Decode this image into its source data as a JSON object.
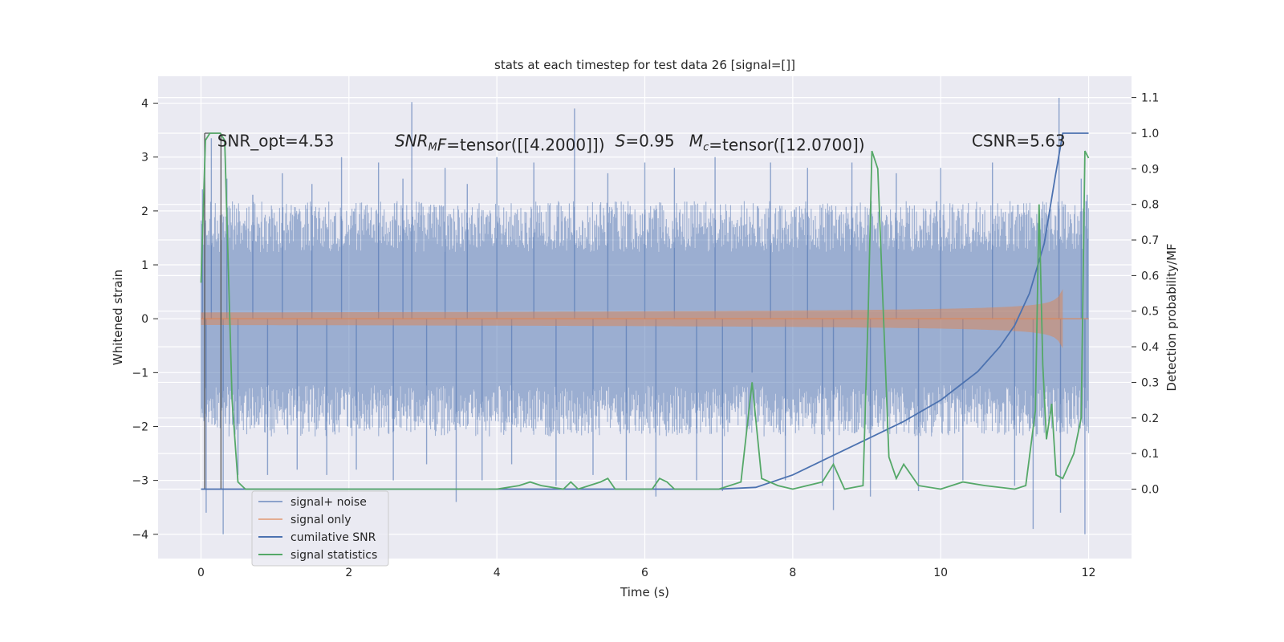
{
  "chart_data": {
    "type": "line",
    "title": "stats at each timestep for test data 26 [signal=[]]",
    "xlabel": "Time (s)",
    "ylabel": "Whitened strain",
    "y2label": "Detection probability/MF",
    "xlim": [
      -0.58,
      12.58
    ],
    "ylim": [
      -4.45,
      4.5
    ],
    "y2lim": [
      -0.195,
      1.16
    ],
    "x_ticks": [
      0,
      2,
      4,
      6,
      8,
      10,
      12
    ],
    "y_ticks": [
      -4,
      -3,
      -2,
      -1,
      0,
      1,
      2,
      3,
      4
    ],
    "y2_ticks": [
      0.0,
      0.1,
      0.2,
      0.3,
      0.4,
      0.5,
      0.6,
      0.7,
      0.8,
      0.9,
      1.0,
      1.1
    ],
    "x_tick_labels": [
      "0",
      "2",
      "4",
      "6",
      "8",
      "10",
      "12"
    ],
    "y_tick_labels": [
      "−4",
      "−3",
      "−2",
      "−1",
      "0",
      "1",
      "2",
      "3",
      "4"
    ],
    "y2_tick_labels": [
      "0.0",
      "0.1",
      "0.2",
      "0.3",
      "0.4",
      "0.5",
      "0.6",
      "0.7",
      "0.8",
      "0.9",
      "1.0",
      "1.1"
    ],
    "grid": true,
    "legend_position": "lower-left",
    "annotations": [
      {
        "key": "snr_opt",
        "text": "SNR_opt=4.53",
        "x": 0.22,
        "y": 3.3
      },
      {
        "key": "snr_mf",
        "text": "=tensor([[4.2000]])",
        "base": "SNR",
        "sub": "M",
        "tail": "F",
        "x": 2.62,
        "y": 3.3
      },
      {
        "key": "s",
        "text": "=0.95",
        "base": "S",
        "x": 5.6,
        "y": 3.3
      },
      {
        "key": "mc",
        "text": "=tensor([12.0700])",
        "base": "M",
        "sub": "c",
        "x": 6.6,
        "y": 3.3
      },
      {
        "key": "csnr",
        "text": "CSNR=5.63",
        "x": 10.42,
        "y": 3.3
      }
    ],
    "vertical_lines": [
      0.05,
      0.27
    ],
    "series": [
      {
        "name": "signal+ noise",
        "color": "#4c72b0",
        "opacity": 0.5,
        "envelope": {
          "t_start": 0.0,
          "t_end": 12.0,
          "typical_range": [
            -1.9,
            1.9
          ],
          "extremes": [
            -4.0,
            4.05
          ]
        },
        "spikes": [
          [
            0.02,
            2.4
          ],
          [
            0.07,
            -3.6
          ],
          [
            0.14,
            3.35
          ],
          [
            0.3,
            -4.0
          ],
          [
            0.35,
            2.6
          ],
          [
            0.5,
            -2.9
          ],
          [
            0.7,
            2.3
          ],
          [
            0.9,
            -2.9
          ],
          [
            1.1,
            2.7
          ],
          [
            1.3,
            -2.8
          ],
          [
            1.5,
            2.5
          ],
          [
            1.7,
            -2.9
          ],
          [
            1.9,
            3.0
          ],
          [
            2.1,
            -2.8
          ],
          [
            2.4,
            2.9
          ],
          [
            2.6,
            -3.0
          ],
          [
            2.73,
            2.6
          ],
          [
            2.85,
            4.02
          ],
          [
            3.05,
            -2.7
          ],
          [
            3.3,
            2.8
          ],
          [
            3.45,
            -3.4
          ],
          [
            3.6,
            2.5
          ],
          [
            3.8,
            -3.0
          ],
          [
            4.0,
            3.0
          ],
          [
            4.2,
            -2.7
          ],
          [
            4.5,
            2.9
          ],
          [
            4.8,
            -3.1
          ],
          [
            5.05,
            3.9
          ],
          [
            5.3,
            -2.9
          ],
          [
            5.5,
            2.7
          ],
          [
            5.75,
            -3.0
          ],
          [
            6.0,
            2.9
          ],
          [
            6.15,
            -3.3
          ],
          [
            6.4,
            2.8
          ],
          [
            6.7,
            -3.0
          ],
          [
            6.95,
            3.0
          ],
          [
            7.05,
            -3.2
          ],
          [
            7.45,
            -1.0
          ],
          [
            7.7,
            2.9
          ],
          [
            7.9,
            -3.0
          ],
          [
            8.2,
            2.8
          ],
          [
            8.4,
            -3.1
          ],
          [
            8.55,
            -3.55
          ],
          [
            8.8,
            2.9
          ],
          [
            9.05,
            -3.3
          ],
          [
            9.4,
            2.7
          ],
          [
            9.7,
            -3.2
          ],
          [
            10.0,
            2.8
          ],
          [
            10.3,
            -3.0
          ],
          [
            10.7,
            2.9
          ],
          [
            11.0,
            -3.1
          ],
          [
            11.25,
            -3.9
          ],
          [
            11.6,
            4.1
          ],
          [
            11.62,
            -3.6
          ],
          [
            11.9,
            2.6
          ],
          [
            11.95,
            -4.0
          ],
          [
            11.98,
            2.3
          ]
        ]
      },
      {
        "name": "signal only",
        "color": "#dd8452",
        "opacity": 0.5,
        "chirp": {
          "t_start": 0.0,
          "t_merger": 11.65,
          "peak_amplitude": 0.55,
          "min_amplitude": -0.85,
          "t_end": 12.0
        }
      },
      {
        "name": "cumilative SNR",
        "color": "#4c72b0",
        "axis": "right",
        "points": [
          [
            0.0,
            0.0
          ],
          [
            7.0,
            0.0
          ],
          [
            7.5,
            0.005
          ],
          [
            8.0,
            0.04
          ],
          [
            8.5,
            0.09
          ],
          [
            9.0,
            0.14
          ],
          [
            9.5,
            0.19
          ],
          [
            10.0,
            0.25
          ],
          [
            10.5,
            0.33
          ],
          [
            10.8,
            0.4
          ],
          [
            11.0,
            0.46
          ],
          [
            11.2,
            0.55
          ],
          [
            11.4,
            0.69
          ],
          [
            11.55,
            0.88
          ],
          [
            11.65,
            1.0
          ],
          [
            12.0,
            1.0
          ]
        ]
      },
      {
        "name": "signal statistics",
        "color": "#55a868",
        "axis": "right",
        "points": [
          [
            0.0,
            0.58
          ],
          [
            0.06,
            0.98
          ],
          [
            0.12,
            1.0
          ],
          [
            0.2,
            1.0
          ],
          [
            0.26,
            1.0
          ],
          [
            0.32,
            0.98
          ],
          [
            0.42,
            0.25
          ],
          [
            0.5,
            0.02
          ],
          [
            0.6,
            0.0
          ],
          [
            1.0,
            0.0
          ],
          [
            2.0,
            0.0
          ],
          [
            3.0,
            0.0
          ],
          [
            4.0,
            0.0
          ],
          [
            4.3,
            0.01
          ],
          [
            4.45,
            0.02
          ],
          [
            4.6,
            0.01
          ],
          [
            4.9,
            0.0
          ],
          [
            5.0,
            0.02
          ],
          [
            5.1,
            0.0
          ],
          [
            5.4,
            0.02
          ],
          [
            5.5,
            0.03
          ],
          [
            5.6,
            0.0
          ],
          [
            6.1,
            0.0
          ],
          [
            6.2,
            0.03
          ],
          [
            6.3,
            0.02
          ],
          [
            6.4,
            0.0
          ],
          [
            7.0,
            0.0
          ],
          [
            7.3,
            0.02
          ],
          [
            7.45,
            0.3
          ],
          [
            7.58,
            0.03
          ],
          [
            7.8,
            0.01
          ],
          [
            8.0,
            0.0
          ],
          [
            8.4,
            0.02
          ],
          [
            8.55,
            0.07
          ],
          [
            8.7,
            0.0
          ],
          [
            8.95,
            0.01
          ],
          [
            9.02,
            0.5
          ],
          [
            9.07,
            0.95
          ],
          [
            9.15,
            0.9
          ],
          [
            9.3,
            0.09
          ],
          [
            9.4,
            0.03
          ],
          [
            9.5,
            0.07
          ],
          [
            9.7,
            0.01
          ],
          [
            10.0,
            0.0
          ],
          [
            10.3,
            0.02
          ],
          [
            10.6,
            0.01
          ],
          [
            11.0,
            0.0
          ],
          [
            11.15,
            0.01
          ],
          [
            11.28,
            0.22
          ],
          [
            11.33,
            0.8
          ],
          [
            11.38,
            0.35
          ],
          [
            11.43,
            0.14
          ],
          [
            11.5,
            0.24
          ],
          [
            11.56,
            0.04
          ],
          [
            11.65,
            0.03
          ],
          [
            11.8,
            0.1
          ],
          [
            11.9,
            0.2
          ],
          [
            11.95,
            0.95
          ],
          [
            12.0,
            0.93
          ]
        ]
      }
    ]
  }
}
